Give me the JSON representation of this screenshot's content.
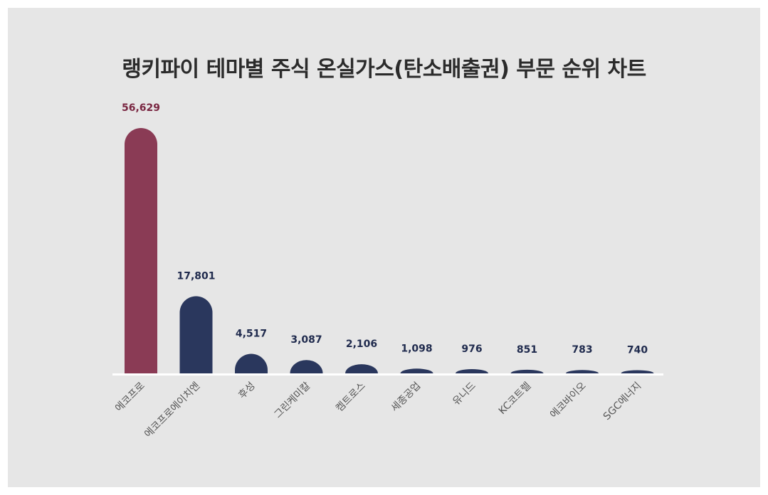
{
  "chart_data": {
    "type": "bar",
    "title": "랭키파이 테마별 주식 온실가스(탄소배출권) 부문 순위 차트",
    "xlabel": "",
    "ylabel": "",
    "ylim": [
      0,
      60000
    ],
    "grid": false,
    "categories": [
      "에코프로",
      "에코프로에이치엔",
      "후성",
      "그린케미칼",
      "켐트로스",
      "세종공업",
      "유니드",
      "KC코트렐",
      "에코바이오",
      "SGC에너지"
    ],
    "values": [
      56629,
      17801,
      4517,
      3087,
      2106,
      1098,
      976,
      851,
      783,
      740
    ],
    "value_labels": [
      "56,629",
      "17,801",
      "4,517",
      "3,087",
      "2,106",
      "1,098",
      "976",
      "851",
      "783",
      "740"
    ],
    "highlight_color": "#8a3b55",
    "bar_color": "#2a375d",
    "highlight_label_color": "#7a2742",
    "label_color": "#1f2a4d",
    "axis_color": "#ffffff"
  }
}
